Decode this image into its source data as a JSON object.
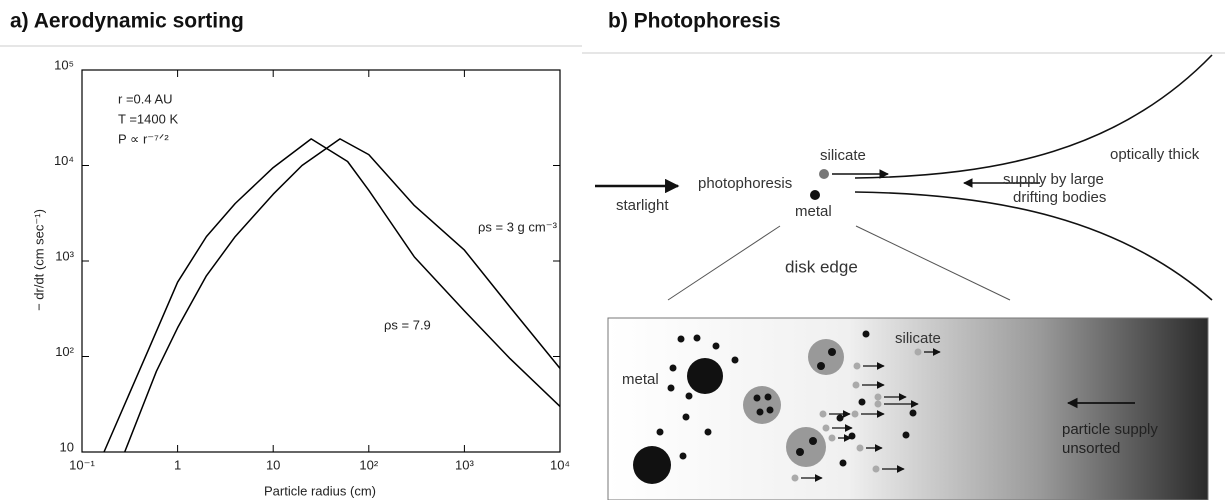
{
  "chart_data": {
    "type": "line",
    "title": "a) Aerodynamic sorting",
    "x_label": "Particle radius (cm)",
    "y_label": "− dr/dt (cm sec⁻¹)",
    "log_x": true,
    "log_y": true,
    "xlim": [
      0.1,
      10000
    ],
    "ylim": [
      10,
      100000
    ],
    "xticks": [
      {
        "value": 0.1,
        "label": "10⁻¹"
      },
      1,
      10,
      {
        "value": 100,
        "label": "10²"
      },
      {
        "value": 1000,
        "label": "10³"
      },
      {
        "value": 10000,
        "label": "10⁴"
      }
    ],
    "yticks": [
      10,
      {
        "value": 100,
        "label": "10²"
      },
      {
        "value": 1000,
        "label": "10³"
      },
      {
        "value": 10000,
        "label": "10⁴"
      },
      {
        "value": 100000,
        "label": "10⁵"
      }
    ],
    "annotations": [
      "r =0.4 AU",
      "T =1400 K",
      "P ∝ r⁻⁷ᐟ²"
    ],
    "series": [
      {
        "name": "ρs = 3 g cm⁻³",
        "color": "#000000",
        "x": [
          0.28,
          0.6,
          1,
          2,
          4,
          10,
          20,
          50,
          100,
          300,
          1000,
          3000,
          10000
        ],
        "values": [
          10,
          70,
          200,
          700,
          1800,
          5000,
          10000,
          19000,
          13000,
          3800,
          1300,
          330,
          75
        ]
      },
      {
        "name": "ρs = 7.9",
        "color": "#000000",
        "x": [
          0.17,
          0.5,
          1,
          2,
          4,
          10,
          25,
          60,
          100,
          300,
          1000,
          3000,
          10000
        ],
        "values": [
          10,
          120,
          600,
          1800,
          4000,
          9500,
          19000,
          11000,
          5500,
          1100,
          300,
          95,
          30
        ]
      }
    ]
  },
  "diagram": {
    "title": "b) Photophoresis",
    "labels": {
      "starlight": "starlight",
      "photophoresis": "photophoresis",
      "silicate": "silicate",
      "metal": "metal",
      "optically_thick": "optically thick",
      "supply": [
        "supply by large",
        "drifting bodies"
      ],
      "disk_edge": "disk edge"
    },
    "inset": {
      "metal": "metal",
      "silicate": "silicate",
      "supply": [
        "particle supply",
        "unsorted"
      ]
    }
  }
}
